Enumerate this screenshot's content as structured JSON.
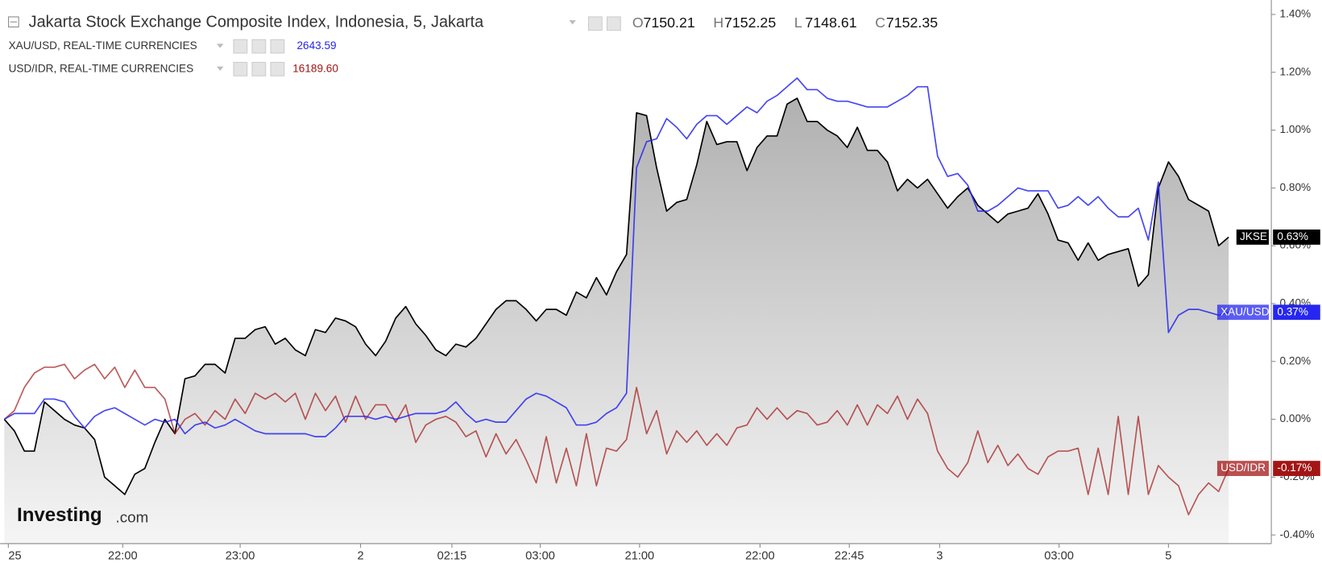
{
  "chart_data": {
    "type": "line",
    "title": "Jakarta Stock Exchange Composite Index, Indonesia, 5, Jakarta",
    "ohlc": [
      {
        "key": "O",
        "value": "7150.21"
      },
      {
        "key": "H",
        "value": "7152.25"
      },
      {
        "key": "L",
        "value": "7148.61"
      },
      {
        "key": "C",
        "value": "7152.35"
      }
    ],
    "watermark": {
      "brand": "Investing",
      "suffix": ".com"
    },
    "xlim": [
      0,
      126
    ],
    "xticks": [
      {
        "value": 0.4,
        "label": "25"
      },
      {
        "value": 11.8,
        "label": "22:00"
      },
      {
        "value": 23.5,
        "label": "23:00"
      },
      {
        "value": 35.5,
        "label": "2"
      },
      {
        "value": 44.6,
        "label": "02:15"
      },
      {
        "value": 53.4,
        "label": "03:00"
      },
      {
        "value": 63.3,
        "label": "21:00"
      },
      {
        "value": 75.3,
        "label": "22:00"
      },
      {
        "value": 84.2,
        "label": "22:45"
      },
      {
        "value": 93.2,
        "label": "3"
      },
      {
        "value": 105.1,
        "label": "03:00"
      },
      {
        "value": 116.0,
        "label": "5"
      }
    ],
    "ylim": [
      -0.43,
      1.45
    ],
    "yticks": [
      {
        "value": -0.4,
        "label": "-0.40%"
      },
      {
        "value": -0.2,
        "label": "-0.20%"
      },
      {
        "value": 0,
        "label": "0.00%"
      },
      {
        "value": 0.2,
        "label": "0.20%"
      },
      {
        "value": 0.4,
        "label": "0.40%"
      },
      {
        "value": 0.6,
        "label": "0.60%"
      },
      {
        "value": 0.8,
        "label": "0.80%"
      },
      {
        "value": 1.0,
        "label": "1.00%"
      },
      {
        "value": 1.2,
        "label": "1.20%"
      },
      {
        "value": 1.4,
        "label": "1.40%"
      }
    ],
    "grid": false,
    "series": [
      {
        "name": "JKSE",
        "badge": "0.63%",
        "color": "#000000",
        "area": true,
        "values": [
          0,
          -0.04,
          -0.11,
          -0.11,
          0.06,
          0.03,
          0,
          -0.02,
          -0.03,
          -0.07,
          -0.2,
          -0.23,
          -0.26,
          -0.19,
          -0.17,
          -0.08,
          0,
          -0.05,
          0.14,
          0.15,
          0.19,
          0.19,
          0.16,
          0.28,
          0.28,
          0.31,
          0.32,
          0.26,
          0.28,
          0.24,
          0.22,
          0.31,
          0.3,
          0.35,
          0.34,
          0.32,
          0.26,
          0.22,
          0.27,
          0.35,
          0.39,
          0.33,
          0.29,
          0.24,
          0.22,
          0.26,
          0.25,
          0.28,
          0.33,
          0.38,
          0.41,
          0.41,
          0.38,
          0.34,
          0.38,
          0.38,
          0.36,
          0.44,
          0.42,
          0.49,
          0.43,
          0.51,
          0.57,
          1.06,
          1.05,
          0.87,
          0.72,
          0.75,
          0.76,
          0.88,
          1.03,
          0.95,
          0.96,
          0.96,
          0.86,
          0.94,
          0.98,
          0.98,
          1.09,
          1.11,
          1.03,
          1.03,
          1.0,
          0.98,
          0.94,
          1.01,
          0.93,
          0.93,
          0.89,
          0.79,
          0.83,
          0.8,
          0.83,
          0.78,
          0.73,
          0.77,
          0.8,
          0.74,
          0.71,
          0.68,
          0.71,
          0.72,
          0.73,
          0.78,
          0.71,
          0.62,
          0.61,
          0.55,
          0.61,
          0.55,
          0.57,
          0.58,
          0.59,
          0.46,
          0.5,
          0.8,
          0.89,
          0.84,
          0.76,
          0.74,
          0.72,
          0.6,
          0.63
        ]
      },
      {
        "name": "XAU/USD",
        "badge": "0.37%",
        "color": "#2626f0",
        "legend_label": "XAU/USD, REAL-TIME CURRENCIES",
        "legend_value": "2643.59",
        "values": [
          0,
          0.02,
          0.02,
          0.02,
          0.07,
          0.07,
          0.06,
          0.01,
          -0.03,
          0.01,
          0.03,
          0.04,
          0.02,
          0.0,
          -0.02,
          0,
          -0.01,
          0.0,
          -0.05,
          -0.02,
          -0.01,
          -0.03,
          -0.02,
          0.0,
          -0.02,
          -0.04,
          -0.05,
          -0.05,
          -0.05,
          -0.05,
          -0.05,
          -0.06,
          -0.06,
          -0.03,
          0.01,
          0.01,
          0.01,
          0.0,
          0.01,
          0.0,
          0.01,
          0.02,
          0.02,
          0.02,
          0.03,
          0.06,
          0.02,
          -0.01,
          0.0,
          -0.01,
          -0.01,
          0.03,
          0.07,
          0.09,
          0.08,
          0.06,
          0.04,
          -0.02,
          -0.02,
          -0.01,
          0.02,
          0.04,
          0.09,
          0.87,
          0.96,
          0.97,
          1.04,
          1.01,
          0.97,
          1.02,
          1.05,
          1.05,
          1.02,
          1.05,
          1.08,
          1.06,
          1.1,
          1.12,
          1.15,
          1.18,
          1.14,
          1.14,
          1.11,
          1.1,
          1.1,
          1.09,
          1.08,
          1.08,
          1.08,
          1.1,
          1.12,
          1.15,
          1.15,
          0.91,
          0.84,
          0.85,
          0.81,
          0.72,
          0.72,
          0.74,
          0.77,
          0.8,
          0.79,
          0.79,
          0.79,
          0.73,
          0.74,
          0.77,
          0.74,
          0.77,
          0.73,
          0.7,
          0.7,
          0.73,
          0.62,
          0.82,
          0.3,
          0.36,
          0.38,
          0.38,
          0.37,
          0.36,
          0.37
        ]
      },
      {
        "name": "USD/IDR",
        "badge": "-0.17%",
        "color": "#a31515",
        "legend_label": "USD/IDR, REAL-TIME CURRENCIES",
        "legend_value": "16189.60",
        "values": [
          0,
          0.03,
          0.11,
          0.16,
          0.18,
          0.18,
          0.19,
          0.14,
          0.17,
          0.19,
          0.14,
          0.18,
          0.11,
          0.17,
          0.11,
          0.11,
          0.07,
          -0.05,
          0.0,
          0.02,
          -0.02,
          0.03,
          0.0,
          0.07,
          0.02,
          0.09,
          0.07,
          0.09,
          0.06,
          0.09,
          0.0,
          0.09,
          0.03,
          0.08,
          -0.01,
          0.08,
          0.0,
          0.05,
          0.05,
          -0.01,
          0.05,
          -0.08,
          -0.02,
          0.0,
          0.01,
          -0.01,
          -0.06,
          -0.04,
          -0.13,
          -0.05,
          -0.12,
          -0.07,
          -0.14,
          -0.22,
          -0.06,
          -0.22,
          -0.1,
          -0.23,
          -0.05,
          -0.23,
          -0.1,
          -0.11,
          -0.07,
          0.11,
          -0.05,
          0.03,
          -0.12,
          -0.04,
          -0.08,
          -0.04,
          -0.09,
          -0.05,
          -0.09,
          -0.03,
          -0.02,
          0.04,
          0.0,
          0.04,
          0.0,
          0.03,
          0.02,
          -0.02,
          -0.01,
          0.03,
          -0.02,
          0.05,
          -0.02,
          0.05,
          0.02,
          0.08,
          0.0,
          0.07,
          0.02,
          -0.11,
          -0.17,
          -0.2,
          -0.15,
          -0.04,
          -0.15,
          -0.09,
          -0.16,
          -0.12,
          -0.17,
          -0.19,
          -0.13,
          -0.11,
          -0.11,
          -0.1,
          -0.26,
          -0.1,
          -0.26,
          0.01,
          -0.26,
          0.01,
          -0.26,
          -0.16,
          -0.2,
          -0.23,
          -0.33,
          -0.26,
          -0.22,
          -0.25,
          -0.17
        ]
      }
    ]
  }
}
